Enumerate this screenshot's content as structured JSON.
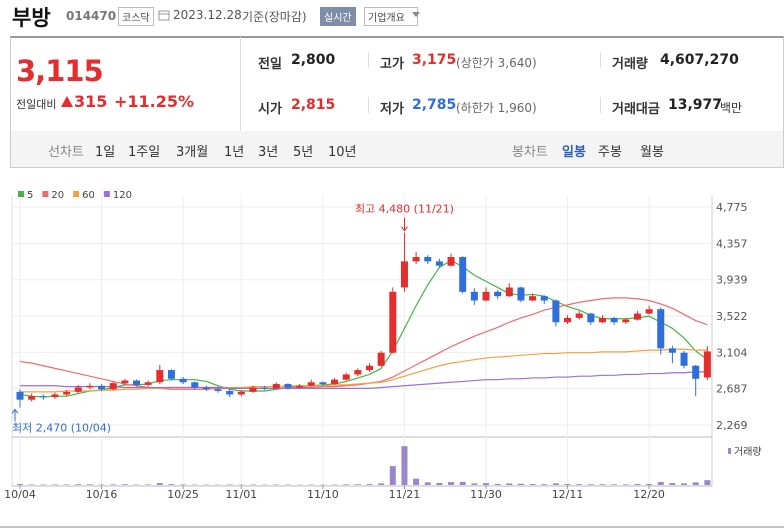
{
  "header": {
    "name": "부방",
    "code": "014470",
    "market": "코스닥",
    "date": "2023.12.28",
    "basis": "기준(장마감)",
    "realtime": "실시간",
    "overview": "기업개요"
  },
  "summary": {
    "price": "3,115",
    "change_label": "전일대비",
    "change": "315",
    "change_rate": "+11.25%",
    "prev_label": "전일",
    "prev": "2,800",
    "high_label": "고가",
    "high": "3,175",
    "upper_limit": "(상한가 3,640)",
    "volume_label": "거래량",
    "volume": "4,607,270",
    "open_label": "시가",
    "open": "2,815",
    "low_label": "저가",
    "low": "2,785",
    "lower_limit": "(하한가 1,960)",
    "amount_label": "거래대금",
    "amount": "13,977",
    "amount_unit": "백만"
  },
  "tabs": {
    "line_chart": "선차트",
    "periods": [
      "1일",
      "1주일",
      "3개월",
      "1년",
      "3년",
      "5년",
      "10년"
    ],
    "candle_chart": "봉차트",
    "candles": [
      "일봉",
      "주봉",
      "월봉"
    ]
  },
  "chart_data": {
    "type": "candlestick",
    "categories": [
      "10/04",
      null,
      null,
      null,
      null,
      null,
      null,
      "10/16",
      null,
      null,
      null,
      null,
      null,
      null,
      "10/25",
      null,
      null,
      null,
      null,
      "11/01",
      null,
      null,
      null,
      null,
      null,
      null,
      "11/10",
      null,
      null,
      null,
      null,
      null,
      null,
      "11/21",
      null,
      null,
      null,
      null,
      null,
      null,
      "11/30",
      null,
      null,
      null,
      null,
      null,
      null,
      "12/11",
      null,
      null,
      null,
      null,
      null,
      null,
      "12/20",
      null,
      null,
      null,
      null,
      null
    ],
    "open": [
      2650,
      2560,
      2600,
      2590,
      2620,
      2650,
      2700,
      2720,
      2680,
      2750,
      2780,
      2730,
      2760,
      2900,
      2800,
      2760,
      2700,
      2680,
      2660,
      2620,
      2650,
      2700,
      2690,
      2740,
      2700,
      2720,
      2760,
      2740,
      2790,
      2850,
      2900,
      2950,
      3100,
      3850,
      4150,
      4200,
      4150,
      4100,
      4200,
      3800,
      3700,
      3800,
      3750,
      3850,
      3700,
      3750,
      3700,
      3450,
      3500,
      3550,
      3450,
      3500,
      3450,
      3480,
      3550,
      3600,
      3150,
      3100,
      2950,
      2815
    ],
    "high": [
      2680,
      2630,
      2620,
      2640,
      2670,
      2730,
      2750,
      2740,
      2770,
      2800,
      2790,
      2780,
      2960,
      2910,
      2820,
      2770,
      2720,
      2700,
      2680,
      2670,
      2720,
      2720,
      2760,
      2750,
      2740,
      2790,
      2770,
      2810,
      2870,
      2920,
      2980,
      3120,
      3850,
      4480,
      4260,
      4220,
      4180,
      4240,
      4210,
      3840,
      3850,
      3820,
      3900,
      3860,
      3780,
      3760,
      3710,
      3530,
      3580,
      3560,
      3530,
      3510,
      3500,
      3580,
      3640,
      3620,
      3180,
      3120,
      2960,
      3175
    ],
    "low": [
      2470,
      2540,
      2560,
      2570,
      2600,
      2630,
      2680,
      2660,
      2670,
      2730,
      2710,
      2710,
      2740,
      2780,
      2740,
      2680,
      2660,
      2640,
      2590,
      2600,
      2640,
      2670,
      2680,
      2680,
      2690,
      2710,
      2720,
      2730,
      2780,
      2830,
      2880,
      2940,
      3090,
      3800,
      4120,
      4120,
      4080,
      4090,
      3780,
      3650,
      3690,
      3720,
      3740,
      3680,
      3690,
      3660,
      3400,
      3430,
      3480,
      3420,
      3440,
      3420,
      3430,
      3470,
      3540,
      3080,
      2980,
      2920,
      2600,
      2785
    ],
    "close": [
      2560,
      2600,
      2590,
      2620,
      2650,
      2700,
      2720,
      2680,
      2750,
      2780,
      2730,
      2760,
      2900,
      2800,
      2760,
      2700,
      2680,
      2660,
      2620,
      2650,
      2700,
      2690,
      2740,
      2700,
      2720,
      2760,
      2740,
      2790,
      2850,
      2900,
      2950,
      3100,
      3800,
      4150,
      4200,
      4150,
      4100,
      4200,
      3800,
      3700,
      3800,
      3750,
      3850,
      3700,
      3750,
      3700,
      3450,
      3500,
      3550,
      3450,
      3500,
      3450,
      3480,
      3550,
      3600,
      3150,
      3100,
      2950,
      2800,
      3115
    ],
    "volume": [
      900000,
      500000,
      400000,
      450000,
      500000,
      700000,
      600000,
      400000,
      600000,
      700000,
      400000,
      500000,
      1800000,
      800000,
      500000,
      400000,
      350000,
      300000,
      450000,
      350000,
      400000,
      300000,
      450000,
      350000,
      300000,
      400000,
      300000,
      400000,
      600000,
      700000,
      800000,
      1500000,
      18000000,
      37000000,
      6000000,
      2500000,
      2000000,
      2800000,
      3000000,
      1500000,
      1800000,
      1000000,
      1500000,
      1200000,
      900000,
      800000,
      1600000,
      900000,
      800000,
      700000,
      700000,
      600000,
      600000,
      900000,
      1000000,
      2800000,
      1800000,
      1500000,
      2500000,
      4607270
    ],
    "up_color": "#e52d2d",
    "down_color": "#2f6fd9",
    "volume_color": "#9a86c9",
    "volume_label": "거래량",
    "volume_ylim": [
      0,
      40000000
    ],
    "series": [
      {
        "name": "5",
        "color": "#44b543",
        "values": [
          2620,
          2600,
          2590,
          2600,
          2600,
          2630,
          2660,
          2670,
          2700,
          2730,
          2730,
          2740,
          2780,
          2790,
          2790,
          2790,
          2770,
          2720,
          2680,
          2660,
          2660,
          2660,
          2680,
          2700,
          2710,
          2720,
          2730,
          2740,
          2770,
          2810,
          2850,
          2920,
          3120,
          3380,
          3640,
          3880,
          4080,
          4160,
          4090,
          3990,
          3920,
          3850,
          3780,
          3760,
          3770,
          3750,
          3690,
          3630,
          3590,
          3530,
          3490,
          3490,
          3490,
          3500,
          3520,
          3450,
          3380,
          3270,
          3120,
          3020
        ]
      },
      {
        "name": "20",
        "color": "#f06c6c",
        "values": [
          3000,
          2980,
          2950,
          2920,
          2890,
          2860,
          2830,
          2800,
          2770,
          2740,
          2720,
          2700,
          2690,
          2680,
          2680,
          2680,
          2680,
          2690,
          2690,
          2690,
          2690,
          2690,
          2690,
          2700,
          2700,
          2700,
          2710,
          2710,
          2720,
          2730,
          2750,
          2770,
          2820,
          2890,
          2960,
          3030,
          3100,
          3170,
          3230,
          3290,
          3340,
          3390,
          3450,
          3500,
          3540,
          3590,
          3620,
          3650,
          3680,
          3700,
          3720,
          3730,
          3730,
          3720,
          3700,
          3660,
          3610,
          3540,
          3470,
          3420
        ]
      },
      {
        "name": "60",
        "color": "#f5a142",
        "values": [
          2650,
          2650,
          2650,
          2650,
          2660,
          2660,
          2660,
          2670,
          2670,
          2680,
          2680,
          2690,
          2690,
          2700,
          2700,
          2700,
          2700,
          2700,
          2700,
          2700,
          2710,
          2710,
          2710,
          2720,
          2720,
          2720,
          2720,
          2730,
          2730,
          2740,
          2750,
          2760,
          2790,
          2830,
          2870,
          2910,
          2950,
          2980,
          3000,
          3020,
          3040,
          3050,
          3060,
          3070,
          3080,
          3090,
          3090,
          3100,
          3100,
          3100,
          3110,
          3110,
          3110,
          3120,
          3130,
          3130,
          3140,
          3140,
          3130,
          3130
        ]
      },
      {
        "name": "120",
        "color": "#9b6fd6",
        "values": [
          2720,
          2720,
          2720,
          2720,
          2710,
          2710,
          2710,
          2710,
          2710,
          2700,
          2700,
          2700,
          2700,
          2700,
          2700,
          2700,
          2700,
          2700,
          2690,
          2690,
          2690,
          2690,
          2690,
          2690,
          2690,
          2690,
          2690,
          2690,
          2690,
          2690,
          2690,
          2700,
          2710,
          2720,
          2730,
          2740,
          2750,
          2760,
          2770,
          2780,
          2790,
          2790,
          2800,
          2800,
          2810,
          2810,
          2820,
          2820,
          2830,
          2830,
          2840,
          2840,
          2850,
          2850,
          2860,
          2860,
          2870,
          2870,
          2880,
          2880
        ]
      }
    ],
    "ylim": [
      2154,
      4913
    ],
    "yticks": [
      {
        "value": 4775,
        "label": "4,775"
      },
      {
        "value": 4357,
        "label": "4,357"
      },
      {
        "value": 3939,
        "label": "3,939"
      },
      {
        "value": 3522,
        "label": "3,522"
      },
      {
        "value": 3104,
        "label": "3,104"
      },
      {
        "value": 2687,
        "label": "2,687"
      },
      {
        "value": 2269,
        "label": "2,269"
      }
    ],
    "grid": true,
    "annotations": [
      {
        "text": "최고 4,480 (11/21)",
        "color": "#e52d2d"
      },
      {
        "text": "최저 2,470 (10/04)",
        "color": "#2f6fd9"
      }
    ]
  }
}
